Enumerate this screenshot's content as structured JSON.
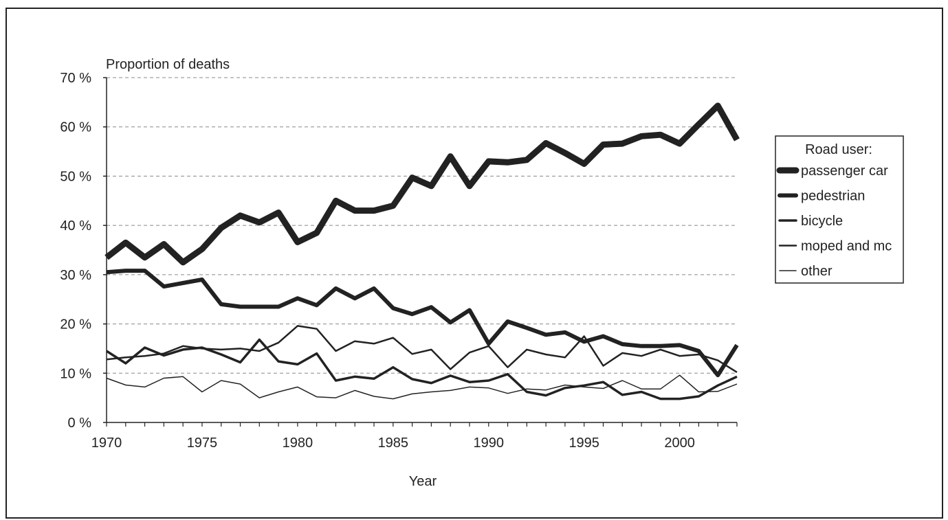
{
  "chart_data": {
    "type": "line",
    "ylabel": "Proportion of deaths",
    "xlabel": "Year",
    "x": [
      1970,
      1971,
      1972,
      1973,
      1974,
      1975,
      1976,
      1977,
      1978,
      1979,
      1980,
      1981,
      1982,
      1983,
      1984,
      1985,
      1986,
      1987,
      1988,
      1989,
      1990,
      1991,
      1992,
      1993,
      1994,
      1995,
      1996,
      1997,
      1998,
      1999,
      2000,
      2001,
      2002,
      2003
    ],
    "x_ticks": [
      1970,
      1975,
      1980,
      1985,
      1990,
      1995,
      2000
    ],
    "x_tick_labels": [
      "1970",
      "1975",
      "1980",
      "1985",
      "1990",
      "1995",
      "2000"
    ],
    "xlim": [
      1970,
      2003
    ],
    "ylim": [
      0,
      70
    ],
    "y_ticks": [
      0,
      10,
      20,
      30,
      40,
      50,
      60,
      70
    ],
    "y_tick_labels": [
      "0 %",
      "10 %",
      "20 %",
      "30 %",
      "40 %",
      "50 %",
      "60 %",
      "70 %"
    ],
    "grid": "horizontal dashed",
    "legend": {
      "title": "Road user:",
      "position": "right"
    },
    "series": [
      {
        "name": "passenger car",
        "color": "#222222",
        "width": 9,
        "values": [
          33.5,
          36.5,
          33.5,
          36.2,
          32.5,
          35.2,
          39.5,
          42.0,
          40.6,
          42.6,
          36.6,
          38.5,
          45.0,
          43.0,
          43.0,
          44.0,
          49.7,
          48.0,
          54.0,
          48.0,
          53.0,
          52.8,
          53.3,
          56.7,
          54.7,
          52.5,
          56.4,
          56.6,
          58.1,
          58.4,
          56.6,
          60.5,
          64.3,
          57.4
        ]
      },
      {
        "name": "pedestrian",
        "color": "#222222",
        "width": 6,
        "values": [
          30.5,
          30.8,
          30.8,
          27.6,
          28.3,
          29.0,
          24.0,
          23.5,
          23.5,
          23.5,
          25.2,
          23.8,
          27.2,
          25.2,
          27.2,
          23.2,
          22.0,
          23.4,
          20.3,
          22.8,
          16.0,
          20.5,
          19.2,
          17.8,
          18.3,
          16.4,
          17.5,
          15.9,
          15.5,
          15.5,
          15.7,
          14.5,
          9.6,
          15.7
        ]
      },
      {
        "name": "bicycle",
        "color": "#222222",
        "width": 3.5,
        "values": [
          14.5,
          12.0,
          15.2,
          13.6,
          14.8,
          15.2,
          13.8,
          12.2,
          16.8,
          12.4,
          11.8,
          14.0,
          8.5,
          9.3,
          8.9,
          11.2,
          8.8,
          8.0,
          9.5,
          8.2,
          8.5,
          9.8,
          6.2,
          5.5,
          7.0,
          7.5,
          8.2,
          5.6,
          6.2,
          4.8,
          4.8,
          5.3,
          7.5,
          9.3
        ]
      },
      {
        "name": "moped and mc",
        "color": "#222222",
        "width": 2.5,
        "values": [
          12.8,
          13.2,
          13.5,
          14.0,
          15.5,
          15.0,
          14.8,
          15.0,
          14.5,
          16.2,
          19.6,
          19.0,
          14.5,
          16.5,
          16.0,
          17.2,
          13.9,
          14.8,
          10.8,
          14.2,
          15.5,
          11.2,
          14.8,
          13.8,
          13.2,
          17.5,
          11.5,
          14.1,
          13.5,
          14.8,
          13.5,
          13.8,
          12.6,
          10.2
        ]
      },
      {
        "name": "other",
        "color": "#222222",
        "width": 1.5,
        "values": [
          9.0,
          7.6,
          7.2,
          9.0,
          9.3,
          6.2,
          8.5,
          7.8,
          5.0,
          6.2,
          7.2,
          5.2,
          5.0,
          6.5,
          5.3,
          4.8,
          5.8,
          6.2,
          6.5,
          7.2,
          7.0,
          5.9,
          6.8,
          6.6,
          7.6,
          7.2,
          6.9,
          8.5,
          6.8,
          6.8,
          9.6,
          6.2,
          6.3,
          7.8
        ]
      }
    ]
  }
}
